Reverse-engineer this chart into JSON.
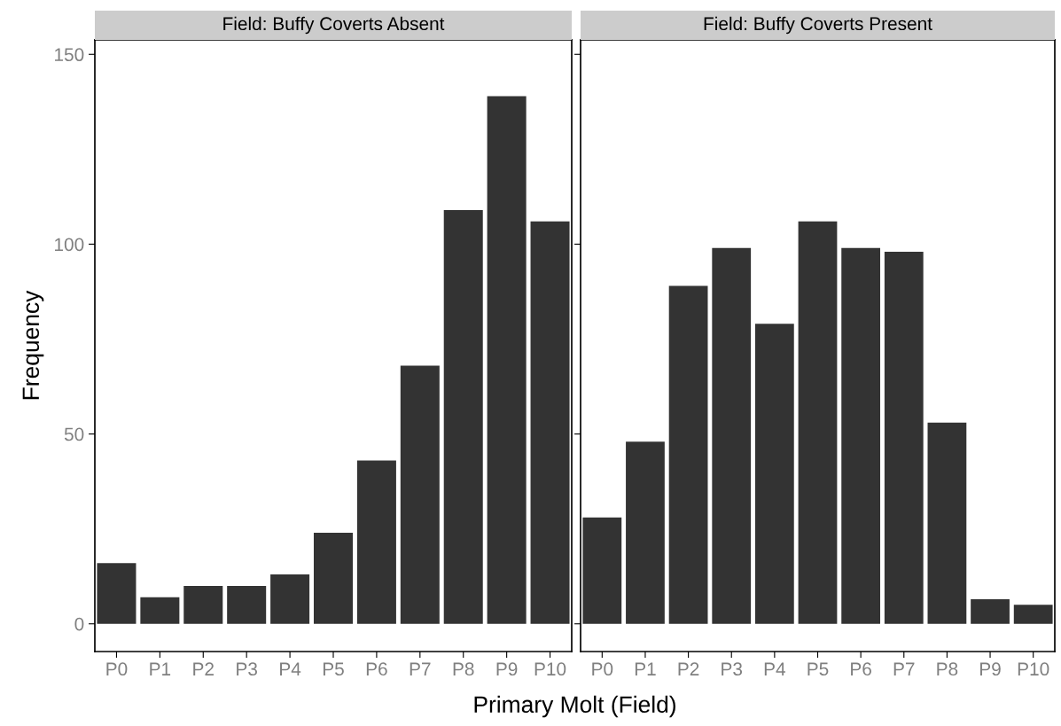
{
  "chart_data": [
    {
      "type": "bar",
      "title": "Field: Buffy Coverts Absent",
      "ylabel": "Frequency",
      "categories": [
        "P0",
        "P1",
        "P2",
        "P3",
        "P4",
        "P5",
        "P6",
        "P7",
        "P8",
        "P9",
        "P10"
      ],
      "values": [
        16,
        7,
        10,
        10,
        13,
        24,
        43,
        68,
        109,
        139,
        106
      ],
      "color": "#333333",
      "ylim": [
        -7.3,
        153.8
      ],
      "yticks": [
        0,
        50,
        100,
        150
      ],
      "grid": false
    },
    {
      "type": "bar",
      "title": "Field: Buffy Coverts Present",
      "xlabel": "Primary Molt (Field)",
      "categories": [
        "P0",
        "P1",
        "P2",
        "P3",
        "P4",
        "P5",
        "P6",
        "P7",
        "P8",
        "P9",
        "P10"
      ],
      "values": [
        28,
        48,
        89,
        99,
        79,
        106,
        99,
        98,
        53,
        6.5,
        5
      ],
      "color": "#333333",
      "ylim": [
        -7.3,
        153.8
      ],
      "yticks": [
        0,
        50,
        100,
        150
      ],
      "grid": false,
      "tick_labels": "x"
    }
  ]
}
